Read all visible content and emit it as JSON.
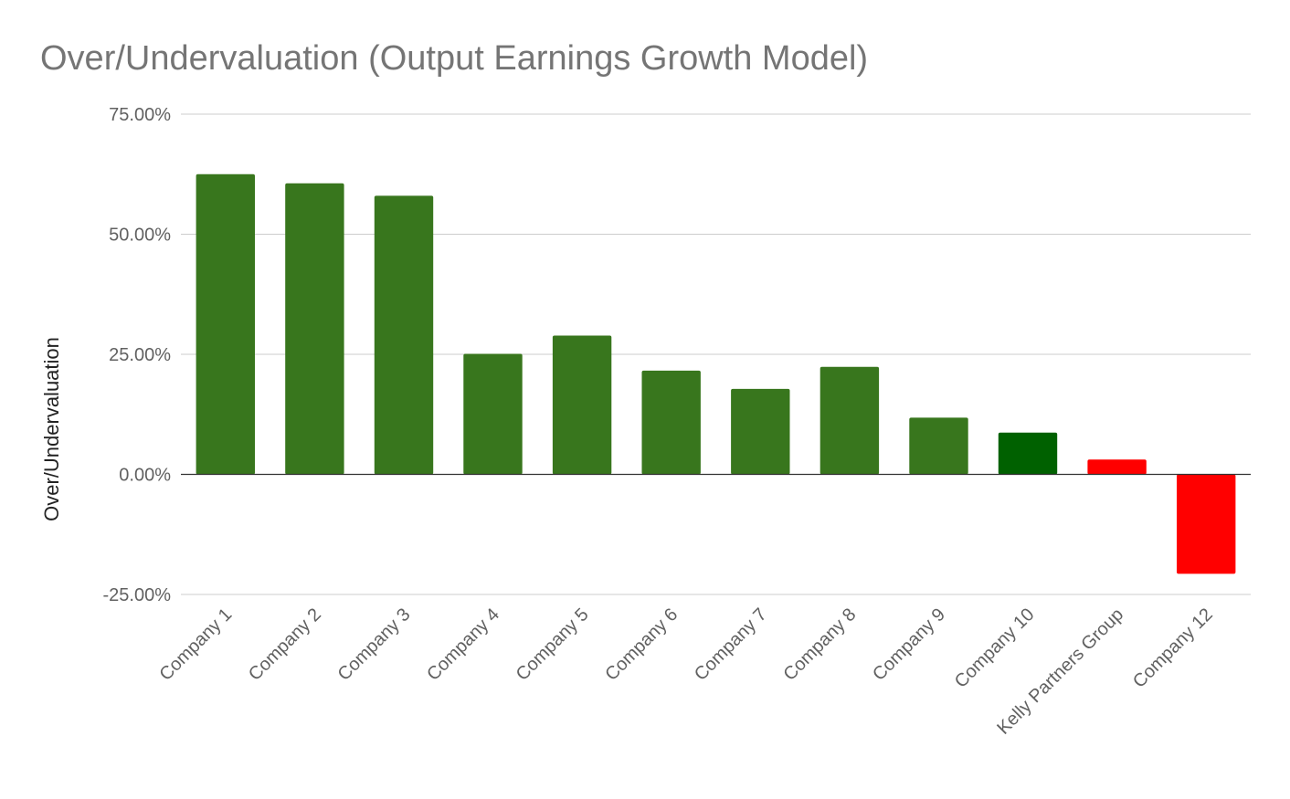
{
  "chart_data": {
    "type": "bar",
    "title": "Over/Undervaluation (Output Earnings Growth Model)",
    "xlabel": "",
    "ylabel": "Over/Undervaluation",
    "ylim": [
      -25,
      75
    ],
    "yticks": [
      75,
      50,
      25,
      0,
      -25
    ],
    "ytick_labels": [
      "75.00%",
      "50.00%",
      "25.00%",
      "0.00%",
      "-25.00%"
    ],
    "grid": true,
    "legend": "none",
    "categories": [
      "Company 1",
      "Company 2",
      "Company 3",
      "Company 4",
      "Company 5",
      "Company 6",
      "Company 7",
      "Company 8",
      "Company 9",
      "Company 10",
      "Kelly Partners Group",
      "Company 12"
    ],
    "values": [
      62.5,
      60.6,
      58.0,
      25.1,
      28.9,
      21.6,
      17.8,
      22.4,
      11.8,
      8.7,
      3.1,
      -20.7
    ],
    "bar_colors": [
      "#38761d",
      "#38761d",
      "#38761d",
      "#38761d",
      "#38761d",
      "#38761d",
      "#38761d",
      "#38761d",
      "#38761d",
      "#006100",
      "#ff0000",
      "#ff0000"
    ]
  }
}
